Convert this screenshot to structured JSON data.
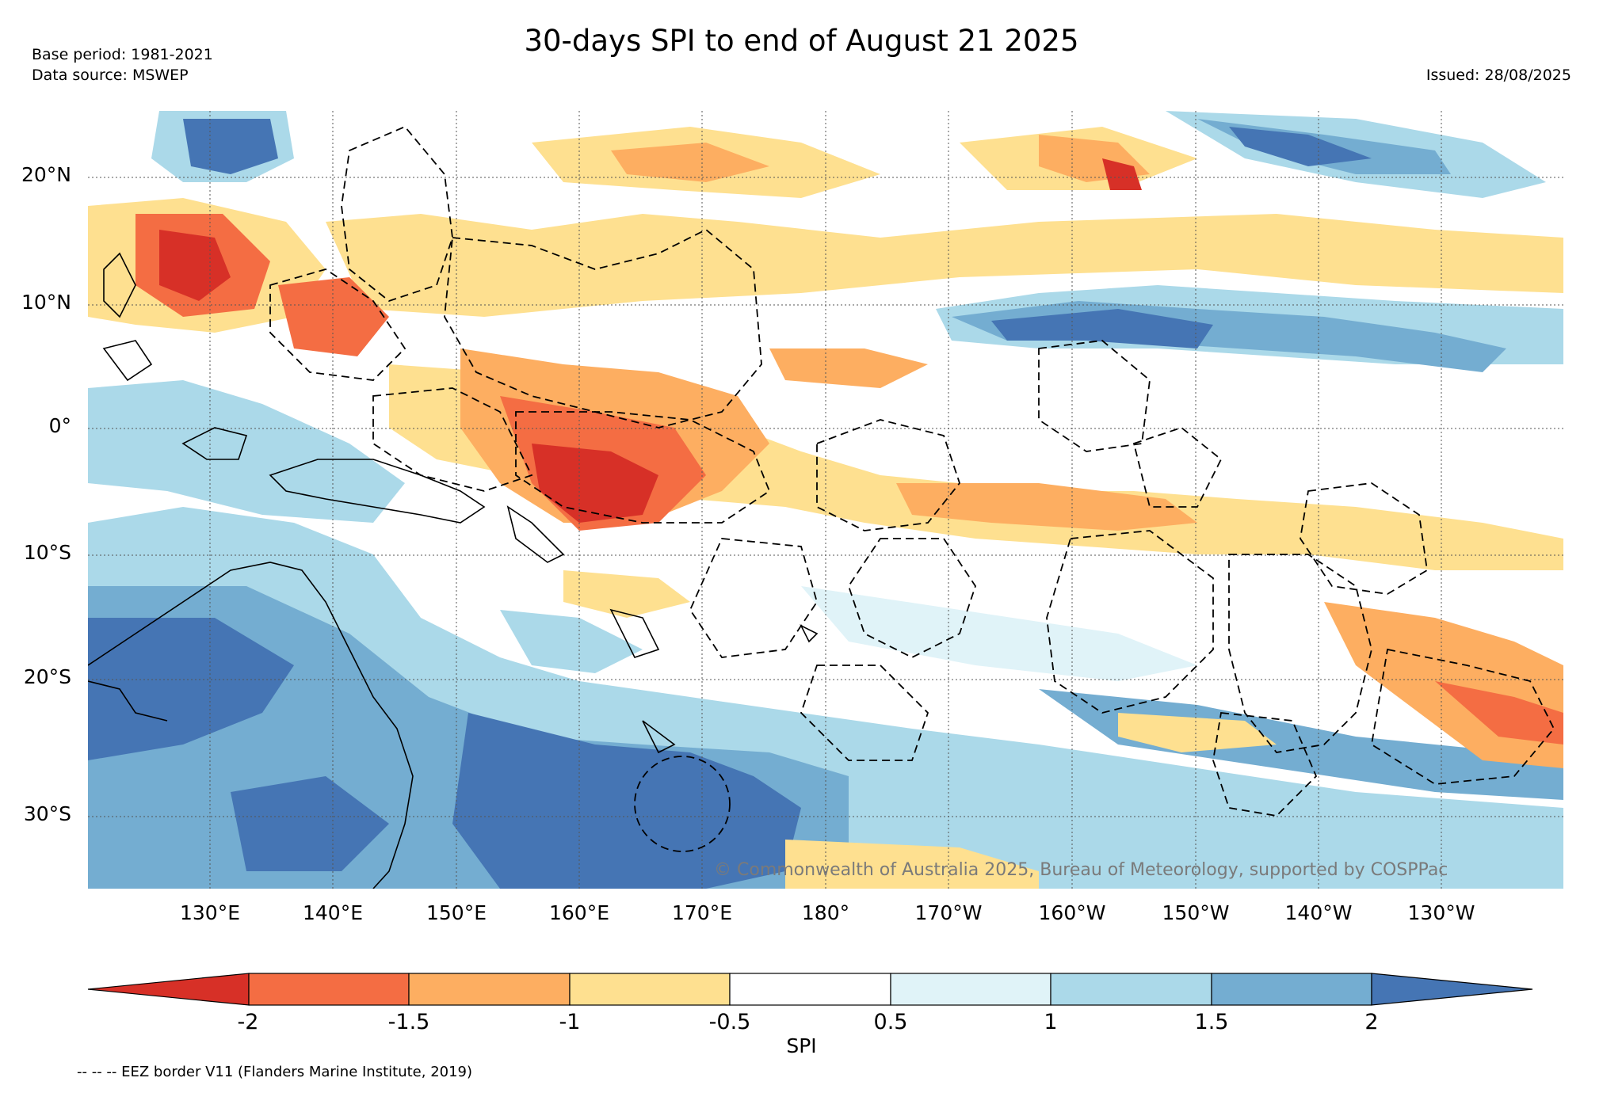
{
  "header": {
    "title": "30-days SPI to end of August 21 2025",
    "base_period": "Base period: 1981-2021",
    "data_source": "Data source: MSWEP",
    "issued": "Issued: 28/08/2025"
  },
  "map": {
    "lat_labels": [
      "20°N",
      "10°N",
      "0°",
      "10°S",
      "20°S",
      "30°S"
    ],
    "lon_labels": [
      "130°E",
      "140°E",
      "150°E",
      "160°E",
      "170°E",
      "180°",
      "170°W",
      "160°W",
      "150°W",
      "140°W",
      "130°W"
    ],
    "copyright": "© Commonwealth of Australia 2025, Bureau of Meteorology, supported by COSPPac",
    "eez_note": "-- -- -- EEZ border V11 (Flanders Marine Institute, 2019)"
  },
  "colorbar": {
    "label": "SPI",
    "ticks": [
      "-2",
      "-1.5",
      "-1",
      "-0.5",
      "0.5",
      "1",
      "1.5",
      "2"
    ],
    "colors": {
      "lt_m2": "#d73027",
      "m2_m15": "#f46d43",
      "m15_m1": "#fdae61",
      "m1_m05": "#fee090",
      "m05_05": "#ffffff",
      "p05_1": "#e0f3f8",
      "p1_15": "#abd9e9",
      "p15_2": "#74add1",
      "gt_2": "#4575b4"
    }
  },
  "icons": {
    "land": "coastline-outline",
    "eez": "dashed-eez-border"
  }
}
